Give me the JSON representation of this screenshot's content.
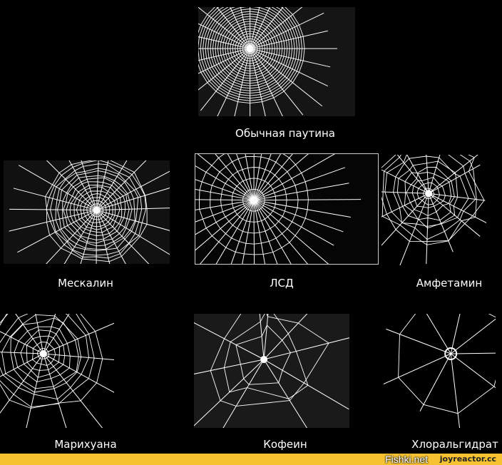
{
  "panels": [
    {
      "id": "normal",
      "label": "Обычная паутина",
      "style": "regular"
    },
    {
      "id": "mescaline",
      "label": "Мескалин",
      "style": "dense"
    },
    {
      "id": "lsd",
      "label": "ЛСД",
      "style": "radial"
    },
    {
      "id": "amphetamine",
      "label": "Амфетамин",
      "style": "messy"
    },
    {
      "id": "marijuana",
      "label": "Марихуана",
      "style": "partial"
    },
    {
      "id": "caffeine",
      "label": "Кофеин",
      "style": "chaotic"
    },
    {
      "id": "chloral",
      "label": "Хлоральгидрат",
      "style": "sparse"
    }
  ],
  "watermarks": {
    "fishki": "Fishki.net",
    "joyreactor": "joyreactor.cc"
  },
  "colors": {
    "background": "#000000",
    "web": "#ffffff",
    "strip": "#f6c232"
  }
}
